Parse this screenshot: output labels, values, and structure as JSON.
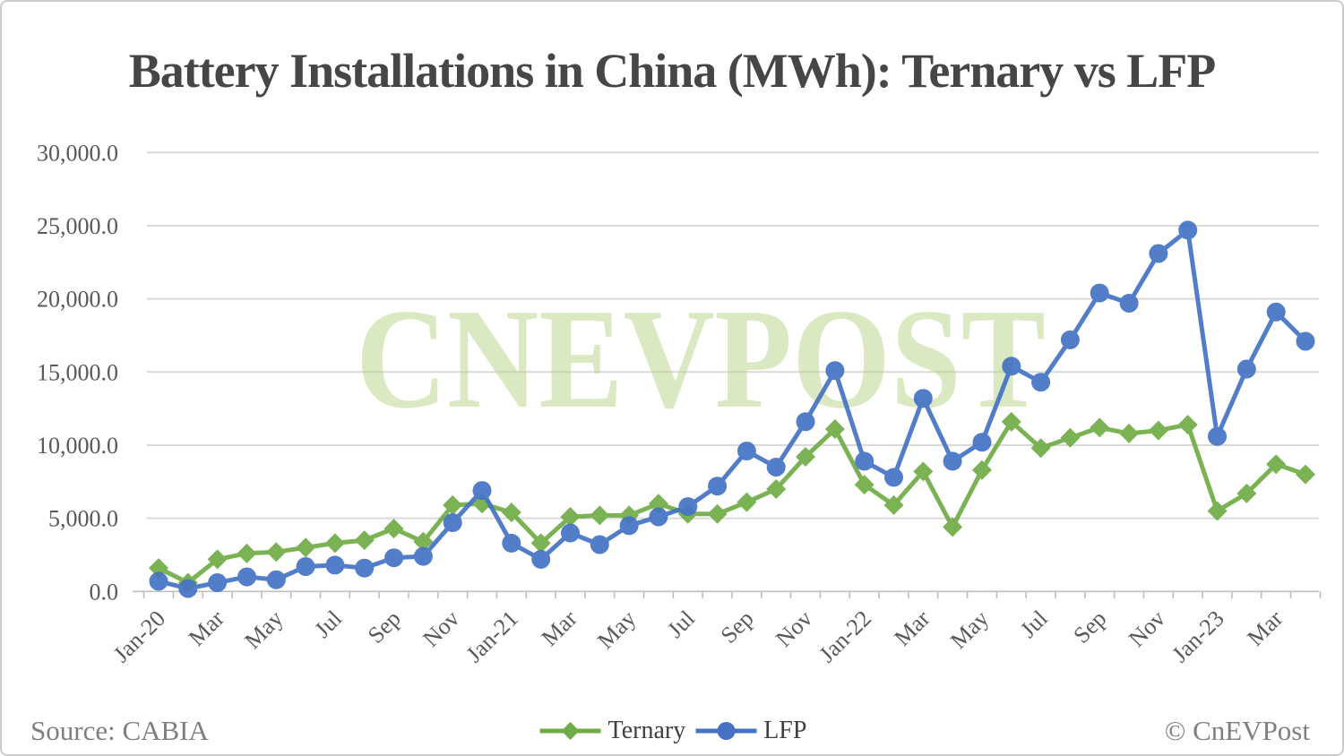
{
  "header": {
    "title": "Battery Installations in China (MWh): Ternary vs LFP"
  },
  "watermark": "CNEVPOST",
  "footer": {
    "source": "Source: CABIA",
    "copyright": "© CnEVPost"
  },
  "chart_data": {
    "type": "line",
    "title": "Battery Installations in China (MWh): Ternary vs LFP",
    "xlabel": "",
    "ylabel": "",
    "ylim": [
      0,
      30000
    ],
    "grid": true,
    "legend_position": "bottom",
    "y_ticks": [
      0,
      5000,
      10000,
      15000,
      20000,
      25000,
      30000
    ],
    "y_tick_labels": [
      "0.0",
      "5,000.0",
      "10,000.0",
      "15,000.0",
      "20,000.0",
      "25,000.0",
      "30,000.0"
    ],
    "x": [
      "Jan-20",
      "Feb-20",
      "Mar-20",
      "Apr-20",
      "May-20",
      "Jun-20",
      "Jul-20",
      "Aug-20",
      "Sep-20",
      "Oct-20",
      "Nov-20",
      "Dec-20",
      "Jan-21",
      "Feb-21",
      "Mar-21",
      "Apr-21",
      "May-21",
      "Jun-21",
      "Jul-21",
      "Aug-21",
      "Sep-21",
      "Oct-21",
      "Nov-21",
      "Dec-21",
      "Jan-22",
      "Feb-22",
      "Mar-22",
      "Apr-22",
      "May-22",
      "Jun-22",
      "Jul-22",
      "Aug-22",
      "Sep-22",
      "Oct-22",
      "Nov-22",
      "Dec-22",
      "Jan-23",
      "Feb-23",
      "Mar-23",
      "Apr-23"
    ],
    "x_tick_labels": [
      "Jan-20",
      "Mar",
      "May",
      "Jul",
      "Sep",
      "Nov",
      "Jan-21",
      "Mar",
      "May",
      "Jul",
      "Sep",
      "Nov",
      "Jan-22",
      "Mar",
      "May",
      "Jul",
      "Sep",
      "Nov",
      "Jan-23",
      "Mar"
    ],
    "x_tick_every": 2,
    "series": [
      {
        "name": "Ternary",
        "color": "#6fac46",
        "marker": "diamond",
        "values": [
          1600,
          600,
          2200,
          2600,
          2700,
          3000,
          3300,
          3500,
          4300,
          3400,
          5900,
          6000,
          5400,
          3300,
          5100,
          5200,
          5200,
          6000,
          5300,
          5300,
          6100,
          7000,
          9200,
          11100,
          7300,
          5900,
          8200,
          4400,
          8300,
          11600,
          9800,
          10500,
          11200,
          10800,
          11000,
          11400,
          5500,
          6700,
          8700,
          8000
        ]
      },
      {
        "name": "LFP",
        "color": "#4472c4",
        "marker": "circle",
        "values": [
          700,
          200,
          600,
          1000,
          800,
          1700,
          1800,
          1600,
          2300,
          2400,
          4700,
          6900,
          3300,
          2200,
          4000,
          3200,
          4500,
          5100,
          5800,
          7200,
          9600,
          8500,
          11600,
          15100,
          8900,
          7800,
          13200,
          8900,
          10200,
          15400,
          14300,
          17200,
          20400,
          19700,
          23100,
          24700,
          10600,
          15200,
          19100,
          17100
        ]
      }
    ],
    "style": {
      "grid_color": "#d9d9d9",
      "axis_color": "#bfbfbf",
      "axis_text_color": "#595959",
      "watermark_color": "#b9d489"
    }
  }
}
